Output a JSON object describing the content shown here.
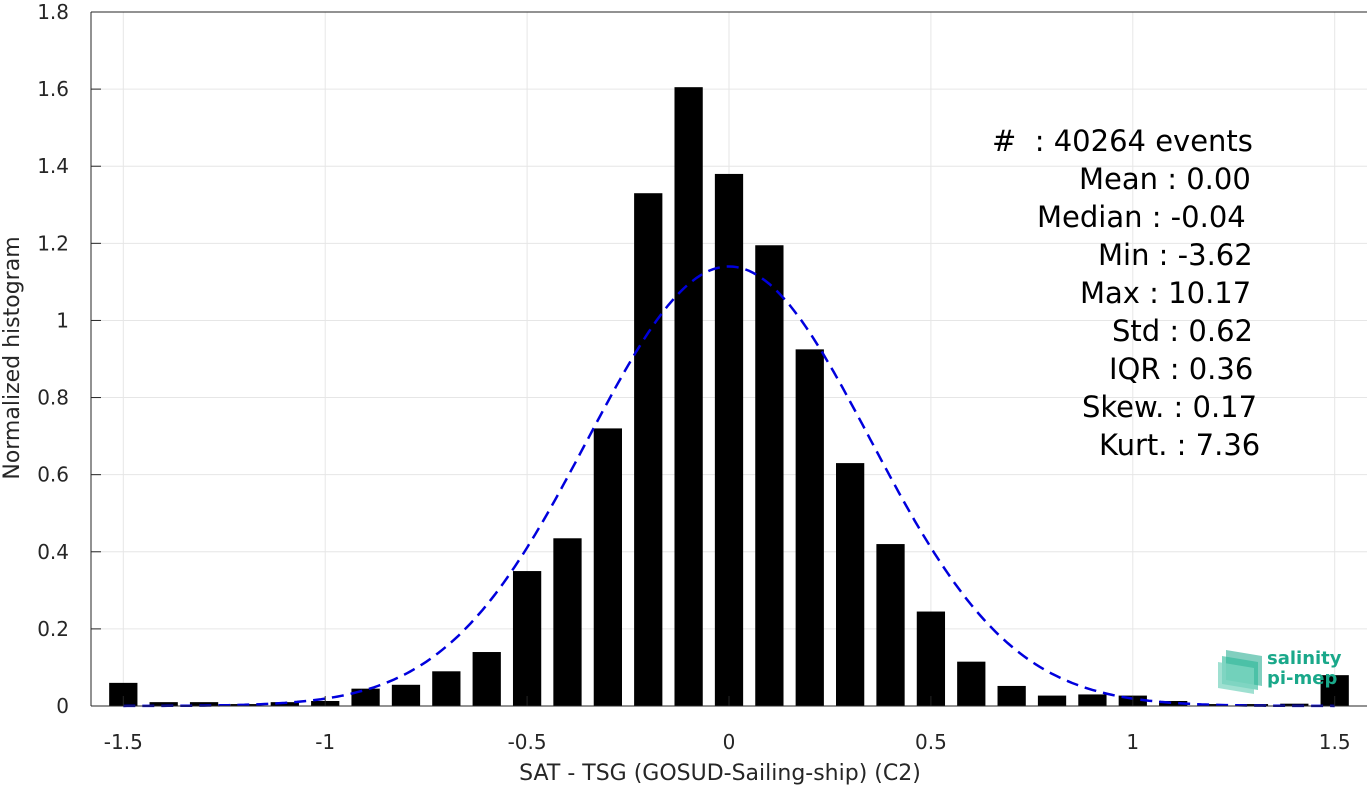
{
  "chart_data": {
    "type": "bar",
    "xlabel": "SAT - TSG (GOSUD-Sailing-ship) (C2)",
    "ylabel": "Normalized histogram",
    "xlim": [
      -1.58,
      1.58
    ],
    "ylim": [
      0,
      1.8
    ],
    "xticks": [
      -1.5,
      -1,
      -0.5,
      0,
      0.5,
      1,
      1.5
    ],
    "xtick_labels": [
      "-1.5",
      "-1",
      "-0.5",
      "0",
      "0.5",
      "1",
      "1.5"
    ],
    "yticks": [
      0,
      0.2,
      0.4,
      0.6,
      0.8,
      1,
      1.2,
      1.4,
      1.6,
      1.8
    ],
    "ytick_labels": [
      "0",
      "0.2",
      "0.4",
      "0.6",
      "0.8",
      "1",
      "1.2",
      "1.4",
      "1.6",
      "1.8"
    ],
    "grid": true,
    "bar_width": 0.07,
    "bar_color": "#000000",
    "bars": {
      "x": [
        -1.5,
        -1.4,
        -1.3,
        -1.2,
        -1.1,
        -1.0,
        -0.9,
        -0.8,
        -0.7,
        -0.6,
        -0.5,
        -0.4,
        -0.3,
        -0.2,
        -0.1,
        0.0,
        0.1,
        0.2,
        0.3,
        0.4,
        0.5,
        0.6,
        0.7,
        0.8,
        0.9,
        1.0,
        1.1,
        1.2,
        1.3,
        1.4,
        1.5
      ],
      "values": [
        0.06,
        0.01,
        0.01,
        0.005,
        0.01,
        0.013,
        0.045,
        0.055,
        0.09,
        0.14,
        0.35,
        0.435,
        0.72,
        1.33,
        1.605,
        1.38,
        1.195,
        0.925,
        0.63,
        0.42,
        0.245,
        0.115,
        0.052,
        0.027,
        0.03,
        0.027,
        0.013,
        0.005,
        0.005,
        0.006,
        0.08
      ]
    },
    "fit_curve": {
      "style": "dashed",
      "color": "#0000dd",
      "mean": 0.0,
      "std": 0.35,
      "peak": 1.14,
      "x_range": [
        -1.5,
        1.5
      ]
    }
  },
  "stats": {
    "lines": [
      "#  : 40264 events",
      "Mean : 0.00 ",
      "Median : -0.04 ",
      "Min : -3.62 ",
      "Max : 10.17",
      "Std : 0.62 ",
      "IQR : 0.36 ",
      "Skew. : 0.17",
      "Kurt. : 7.36"
    ]
  },
  "logo": {
    "line1": "salinity",
    "line2": "pi-mep",
    "color": "#1aa88a"
  }
}
